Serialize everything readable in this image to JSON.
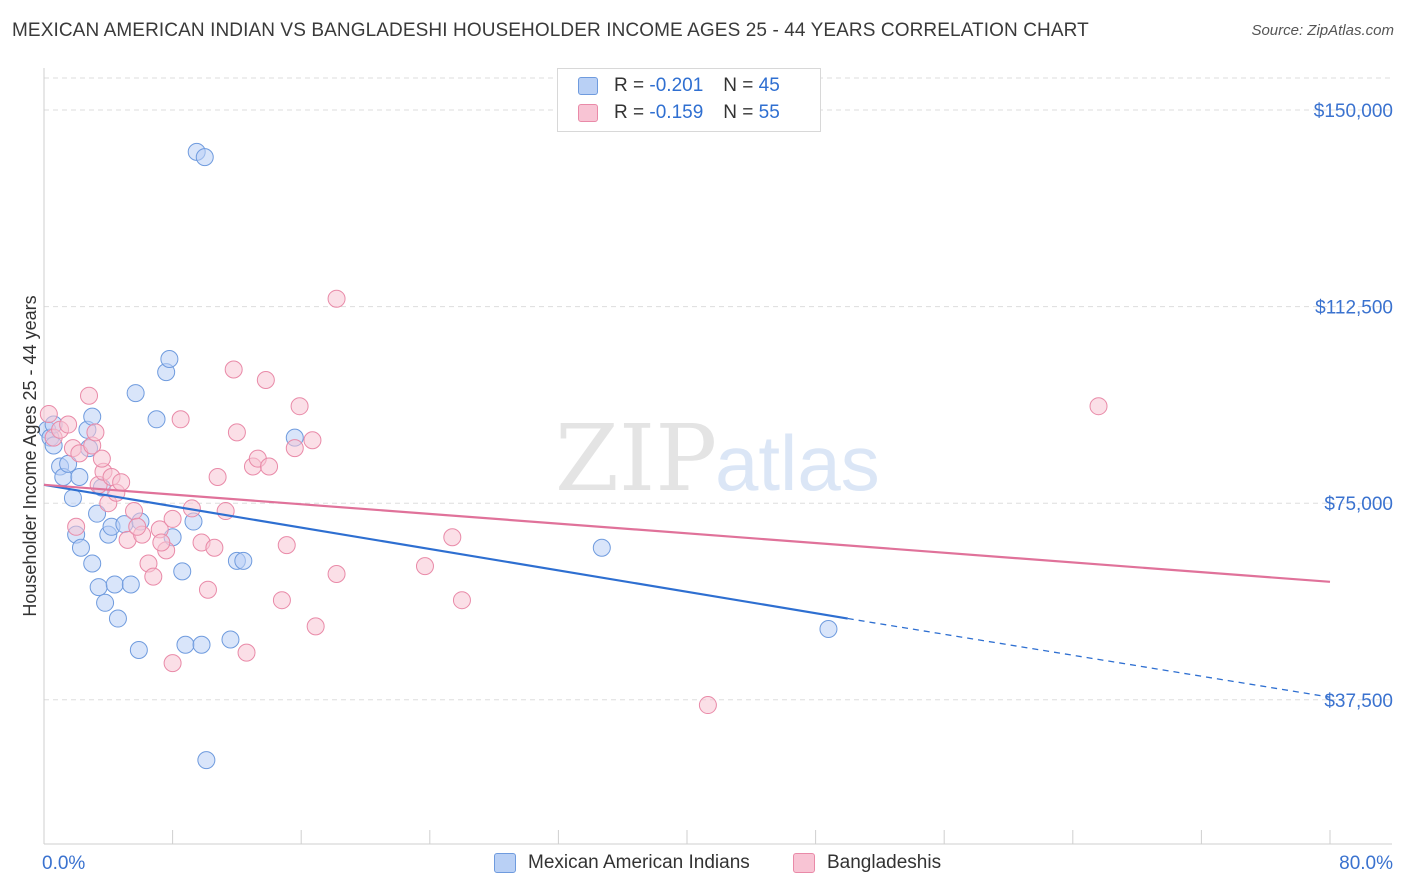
{
  "title": "MEXICAN AMERICAN INDIAN VS BANGLADESHI HOUSEHOLDER INCOME AGES 25 - 44 YEARS CORRELATION CHART",
  "source": "Source: ZipAtlas.com",
  "watermark": {
    "zip": "ZIP",
    "atlas": "atlas"
  },
  "legend": {
    "rows": [
      {
        "r_label": "R =",
        "r_value": "-0.201",
        "n_label": "N =",
        "n_value": "45"
      },
      {
        "r_label": "R =",
        "r_value": "-0.159",
        "n_label": "N =",
        "n_value": "55"
      }
    ]
  },
  "bottom_legend": [
    "Mexican American Indians",
    "Bangladeshis"
  ],
  "colors": {
    "blue_fill": "#b9d0f5",
    "blue_stroke": "#6f9bde",
    "blue_line": "#2e6fd1",
    "pink_fill": "#f8c4d4",
    "pink_stroke": "#e98aa8",
    "pink_line": "#e0729a",
    "tick_text": "#3a72cf",
    "grid": "#dddddd"
  },
  "chart_data": {
    "type": "scatter",
    "title": "MEXICAN AMERICAN INDIAN VS BANGLADESHI HOUSEHOLDER INCOME AGES 25 - 44 YEARS CORRELATION CHART",
    "xlabel": "",
    "ylabel": "Householder Income Ages 25 - 44 years",
    "xlim": [
      0,
      80
    ],
    "ylim": [
      10000,
      158000
    ],
    "x_tick_labels": [
      "0.0%",
      "80.0%"
    ],
    "y_ticks": [
      37500,
      75000,
      112500,
      150000
    ],
    "y_tick_labels": [
      "$37,500",
      "$75,000",
      "$112,500",
      "$150,000"
    ],
    "grid": true,
    "legend_placement": "top-center",
    "series": [
      {
        "name": "Mexican American Indians",
        "color": "#6f9bde",
        "points": [
          [
            0.2,
            89000
          ],
          [
            0.4,
            87500
          ],
          [
            0.6,
            86000
          ],
          [
            1.0,
            82000
          ],
          [
            1.2,
            80000
          ],
          [
            1.5,
            82500
          ],
          [
            1.8,
            76000
          ],
          [
            2.0,
            69000
          ],
          [
            2.2,
            80000
          ],
          [
            2.3,
            66500
          ],
          [
            2.7,
            89000
          ],
          [
            2.8,
            85500
          ],
          [
            3.0,
            91500
          ],
          [
            3.0,
            63500
          ],
          [
            3.3,
            73000
          ],
          [
            3.4,
            59000
          ],
          [
            3.6,
            78000
          ],
          [
            3.8,
            56000
          ],
          [
            4.0,
            69000
          ],
          [
            4.2,
            70500
          ],
          [
            4.4,
            59500
          ],
          [
            4.6,
            53000
          ],
          [
            5.0,
            71000
          ],
          [
            5.4,
            59500
          ],
          [
            5.7,
            96000
          ],
          [
            5.9,
            47000
          ],
          [
            6.0,
            71500
          ],
          [
            7.0,
            91000
          ],
          [
            7.6,
            100000
          ],
          [
            7.8,
            102500
          ],
          [
            8.0,
            68500
          ],
          [
            8.6,
            62000
          ],
          [
            8.8,
            48000
          ],
          [
            9.3,
            71500
          ],
          [
            9.5,
            142000
          ],
          [
            9.8,
            48000
          ],
          [
            10.0,
            141000
          ],
          [
            10.1,
            26000
          ],
          [
            11.6,
            49000
          ],
          [
            12.0,
            64000
          ],
          [
            12.4,
            64000
          ],
          [
            15.6,
            87500
          ],
          [
            34.7,
            66500
          ],
          [
            48.8,
            51000
          ],
          [
            0.6,
            90000
          ]
        ]
      },
      {
        "name": "Bangladeshis",
        "color": "#e98aa8",
        "points": [
          [
            0.3,
            92000
          ],
          [
            0.6,
            87500
          ],
          [
            1.0,
            89000
          ],
          [
            1.5,
            90000
          ],
          [
            1.8,
            85500
          ],
          [
            2.0,
            70500
          ],
          [
            2.2,
            84500
          ],
          [
            2.8,
            95500
          ],
          [
            3.0,
            86000
          ],
          [
            3.2,
            88500
          ],
          [
            3.4,
            78500
          ],
          [
            3.7,
            81000
          ],
          [
            4.0,
            75000
          ],
          [
            4.2,
            80000
          ],
          [
            4.5,
            77000
          ],
          [
            4.8,
            79000
          ],
          [
            5.2,
            68000
          ],
          [
            5.6,
            73500
          ],
          [
            6.1,
            69000
          ],
          [
            6.5,
            63500
          ],
          [
            6.8,
            61000
          ],
          [
            7.2,
            70000
          ],
          [
            7.6,
            66000
          ],
          [
            8.0,
            72000
          ],
          [
            8.5,
            91000
          ],
          [
            8.0,
            44500
          ],
          [
            9.2,
            74000
          ],
          [
            9.8,
            67500
          ],
          [
            10.2,
            58500
          ],
          [
            10.6,
            66500
          ],
          [
            10.8,
            80000
          ],
          [
            11.3,
            73500
          ],
          [
            11.8,
            100500
          ],
          [
            12.0,
            88500
          ],
          [
            12.6,
            46500
          ],
          [
            13.0,
            82000
          ],
          [
            13.3,
            83500
          ],
          [
            13.8,
            98500
          ],
          [
            14.0,
            82000
          ],
          [
            14.8,
            56500
          ],
          [
            15.1,
            67000
          ],
          [
            15.6,
            85500
          ],
          [
            15.9,
            93500
          ],
          [
            16.7,
            87000
          ],
          [
            16.9,
            51500
          ],
          [
            18.2,
            114000
          ],
          [
            18.2,
            61500
          ],
          [
            23.7,
            63000
          ],
          [
            25.4,
            68500
          ],
          [
            26.0,
            56500
          ],
          [
            41.3,
            36500
          ],
          [
            65.6,
            93500
          ],
          [
            5.8,
            70500
          ],
          [
            7.3,
            67500
          ],
          [
            3.6,
            83500
          ]
        ]
      }
    ],
    "trend_lines": [
      {
        "series": "Mexican American Indians",
        "x": [
          0,
          50
        ],
        "y": [
          78500,
          53000
        ],
        "dashed_extension_to_x": 80,
        "dashed_end_y": 38000
      },
      {
        "series": "Bangladeshis",
        "x": [
          0,
          80
        ],
        "y": [
          78500,
          60000
        ]
      }
    ]
  }
}
